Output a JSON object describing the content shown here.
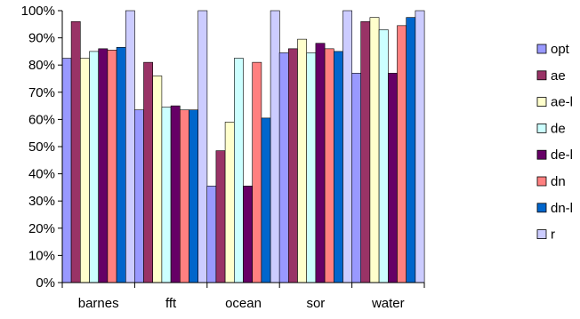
{
  "chart_data": {
    "type": "bar",
    "categories": [
      "barnes",
      "fft",
      "ocean",
      "sor",
      "water"
    ],
    "y_ticks": [
      "0%",
      "10%",
      "20%",
      "30%",
      "40%",
      "50%",
      "60%",
      "70%",
      "80%",
      "90%",
      "100%"
    ],
    "ylim": [
      0,
      100
    ],
    "grid": false,
    "legend_position": "right",
    "series": [
      {
        "name": "opt",
        "color": "#9999ff",
        "values": [
          82.5,
          63.5,
          35.5,
          84.5,
          77
        ]
      },
      {
        "name": "ae",
        "color": "#993366",
        "values": [
          96,
          81,
          48.5,
          86,
          96
        ]
      },
      {
        "name": "ae-l",
        "color": "#ffffcc",
        "values": [
          82.5,
          76,
          59,
          89.5,
          97.5
        ]
      },
      {
        "name": "de",
        "color": "#ccffff",
        "values": [
          85,
          64.5,
          82.5,
          84.5,
          93
        ]
      },
      {
        "name": "de-l",
        "color": "#660066",
        "values": [
          86,
          65,
          35.5,
          88,
          77
        ]
      },
      {
        "name": "dn",
        "color": "#ff8080",
        "values": [
          85.5,
          63.5,
          81,
          86,
          94.5
        ]
      },
      {
        "name": "dn-l",
        "color": "#0066cc",
        "values": [
          86.5,
          63.5,
          60.5,
          85,
          97.5
        ]
      },
      {
        "name": "r",
        "color": "#ccccff",
        "values": [
          100,
          100,
          100,
          100,
          100
        ]
      }
    ]
  }
}
